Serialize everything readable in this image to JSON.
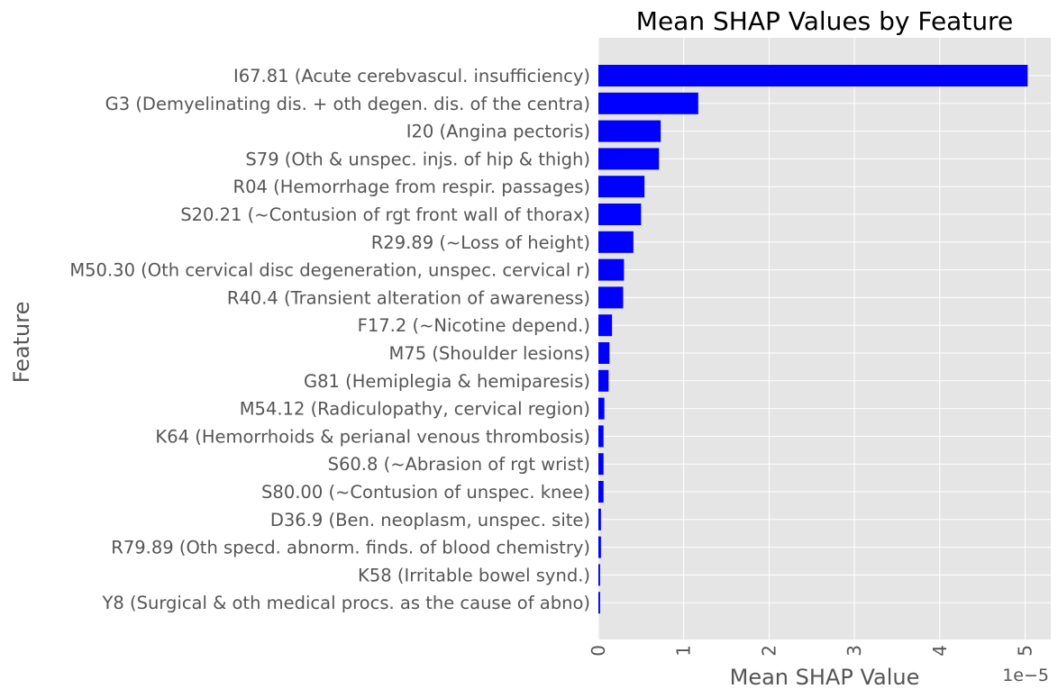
{
  "chart_data": {
    "type": "bar",
    "orientation": "horizontal",
    "title": "Mean SHAP Values by Feature",
    "xlabel": "Mean SHAP Value",
    "ylabel": "Feature",
    "x_scale_label": "1e−5",
    "xlim": [
      0,
      5.3
    ],
    "xticks": [
      "0",
      "1",
      "2",
      "3",
      "4",
      "5"
    ],
    "grid": true,
    "bar_color": "#0000ff",
    "plot_background": "#e5e5e5",
    "grid_color": "#ffffff",
    "text_color": "#555555",
    "categories": [
      "I67.81 (Acute cerebvascul. insufficiency)",
      "G3 (Demyelinating dis. + oth degen. dis. of the centra)",
      "I20 (Angina pectoris)",
      "S79 (Oth & unspec. injs. of hip & thigh)",
      "R04 (Hemorrhage from respir. passages)",
      "S20.21 (~Contusion of rgt front wall of thorax)",
      "R29.89 (~Loss of height)",
      "M50.30 (Oth cervical disc degeneration, unspec. cervical r)",
      "R40.4 (Transient alteration of awareness)",
      "F17.2 (~Nicotine depend.)",
      "M75 (Shoulder lesions)",
      "G81 (Hemiplegia & hemiparesis)",
      "M54.12 (Radiculopathy, cervical region)",
      "K64 (Hemorrhoids & perianal venous thrombosis)",
      "S60.8 (~Abrasion of rgt wrist)",
      "S80.00 (~Contusion of unspec. knee)",
      "D36.9 (Ben. neoplasm, unspec. site)",
      "R79.89 (Oth specd. abnorm. finds. of blood chemistry)",
      "K58 (Irritable bowel synd.)",
      "Y8 (Surgical & oth medical procs. as the cause of abno)"
    ],
    "values": [
      5.03,
      1.17,
      0.73,
      0.71,
      0.54,
      0.5,
      0.41,
      0.3,
      0.29,
      0.16,
      0.13,
      0.12,
      0.07,
      0.06,
      0.06,
      0.06,
      0.03,
      0.03,
      0.02,
      0.02
    ]
  }
}
